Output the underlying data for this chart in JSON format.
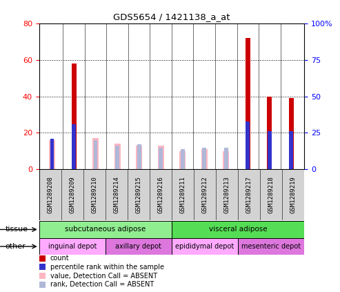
{
  "title": "GDS5654 / 1421138_a_at",
  "samples": [
    "GSM1289208",
    "GSM1289209",
    "GSM1289210",
    "GSM1289214",
    "GSM1289215",
    "GSM1289216",
    "GSM1289211",
    "GSM1289212",
    "GSM1289213",
    "GSM1289217",
    "GSM1289218",
    "GSM1289219"
  ],
  "count_values": [
    0,
    58,
    0,
    0,
    0,
    0,
    0,
    0,
    0,
    72,
    40,
    39
  ],
  "percentile_rank": [
    21,
    31,
    0,
    0,
    0,
    0,
    0,
    0,
    0,
    33,
    26,
    26
  ],
  "absent_value": [
    16,
    0,
    17,
    14,
    13,
    13,
    10,
    11,
    10,
    0,
    0,
    0
  ],
  "absent_rank": [
    21,
    0,
    20,
    16,
    17,
    15,
    14,
    15,
    15,
    0,
    0,
    0
  ],
  "ylim_left": [
    0,
    80
  ],
  "ylim_right": [
    0,
    100
  ],
  "yticks_left": [
    0,
    20,
    40,
    60,
    80
  ],
  "yticks_right": [
    0,
    25,
    50,
    75,
    100
  ],
  "yticklabels_right": [
    "0",
    "25",
    "50",
    "75",
    "100%"
  ],
  "count_color": "#cc0000",
  "percentile_color": "#3333cc",
  "absent_value_color": "#ffb6c1",
  "absent_rank_color": "#b0b8d8",
  "bg_color": "#d3d3d3",
  "plot_bg": "#ffffff",
  "legend_items": [
    {
      "color": "#cc0000",
      "label": "count"
    },
    {
      "color": "#3333cc",
      "label": "percentile rank within the sample"
    },
    {
      "color": "#ffb6c1",
      "label": "value, Detection Call = ABSENT"
    },
    {
      "color": "#b0b8d8",
      "label": "rank, Detection Call = ABSENT"
    }
  ],
  "tissue_groups": [
    {
      "label": "subcutaneous adipose",
      "start": 0,
      "end": 6,
      "color": "#90ee90"
    },
    {
      "label": "visceral adipose",
      "start": 6,
      "end": 12,
      "color": "#55dd55"
    }
  ],
  "other_groups": [
    {
      "label": "inguinal depot",
      "start": 0,
      "end": 3,
      "color": "#ffaaff"
    },
    {
      "label": "axillary depot",
      "start": 3,
      "end": 6,
      "color": "#dd77dd"
    },
    {
      "label": "epididymal depot",
      "start": 6,
      "end": 9,
      "color": "#ffaaff"
    },
    {
      "label": "mesenteric depot",
      "start": 9,
      "end": 12,
      "color": "#dd77dd"
    }
  ]
}
